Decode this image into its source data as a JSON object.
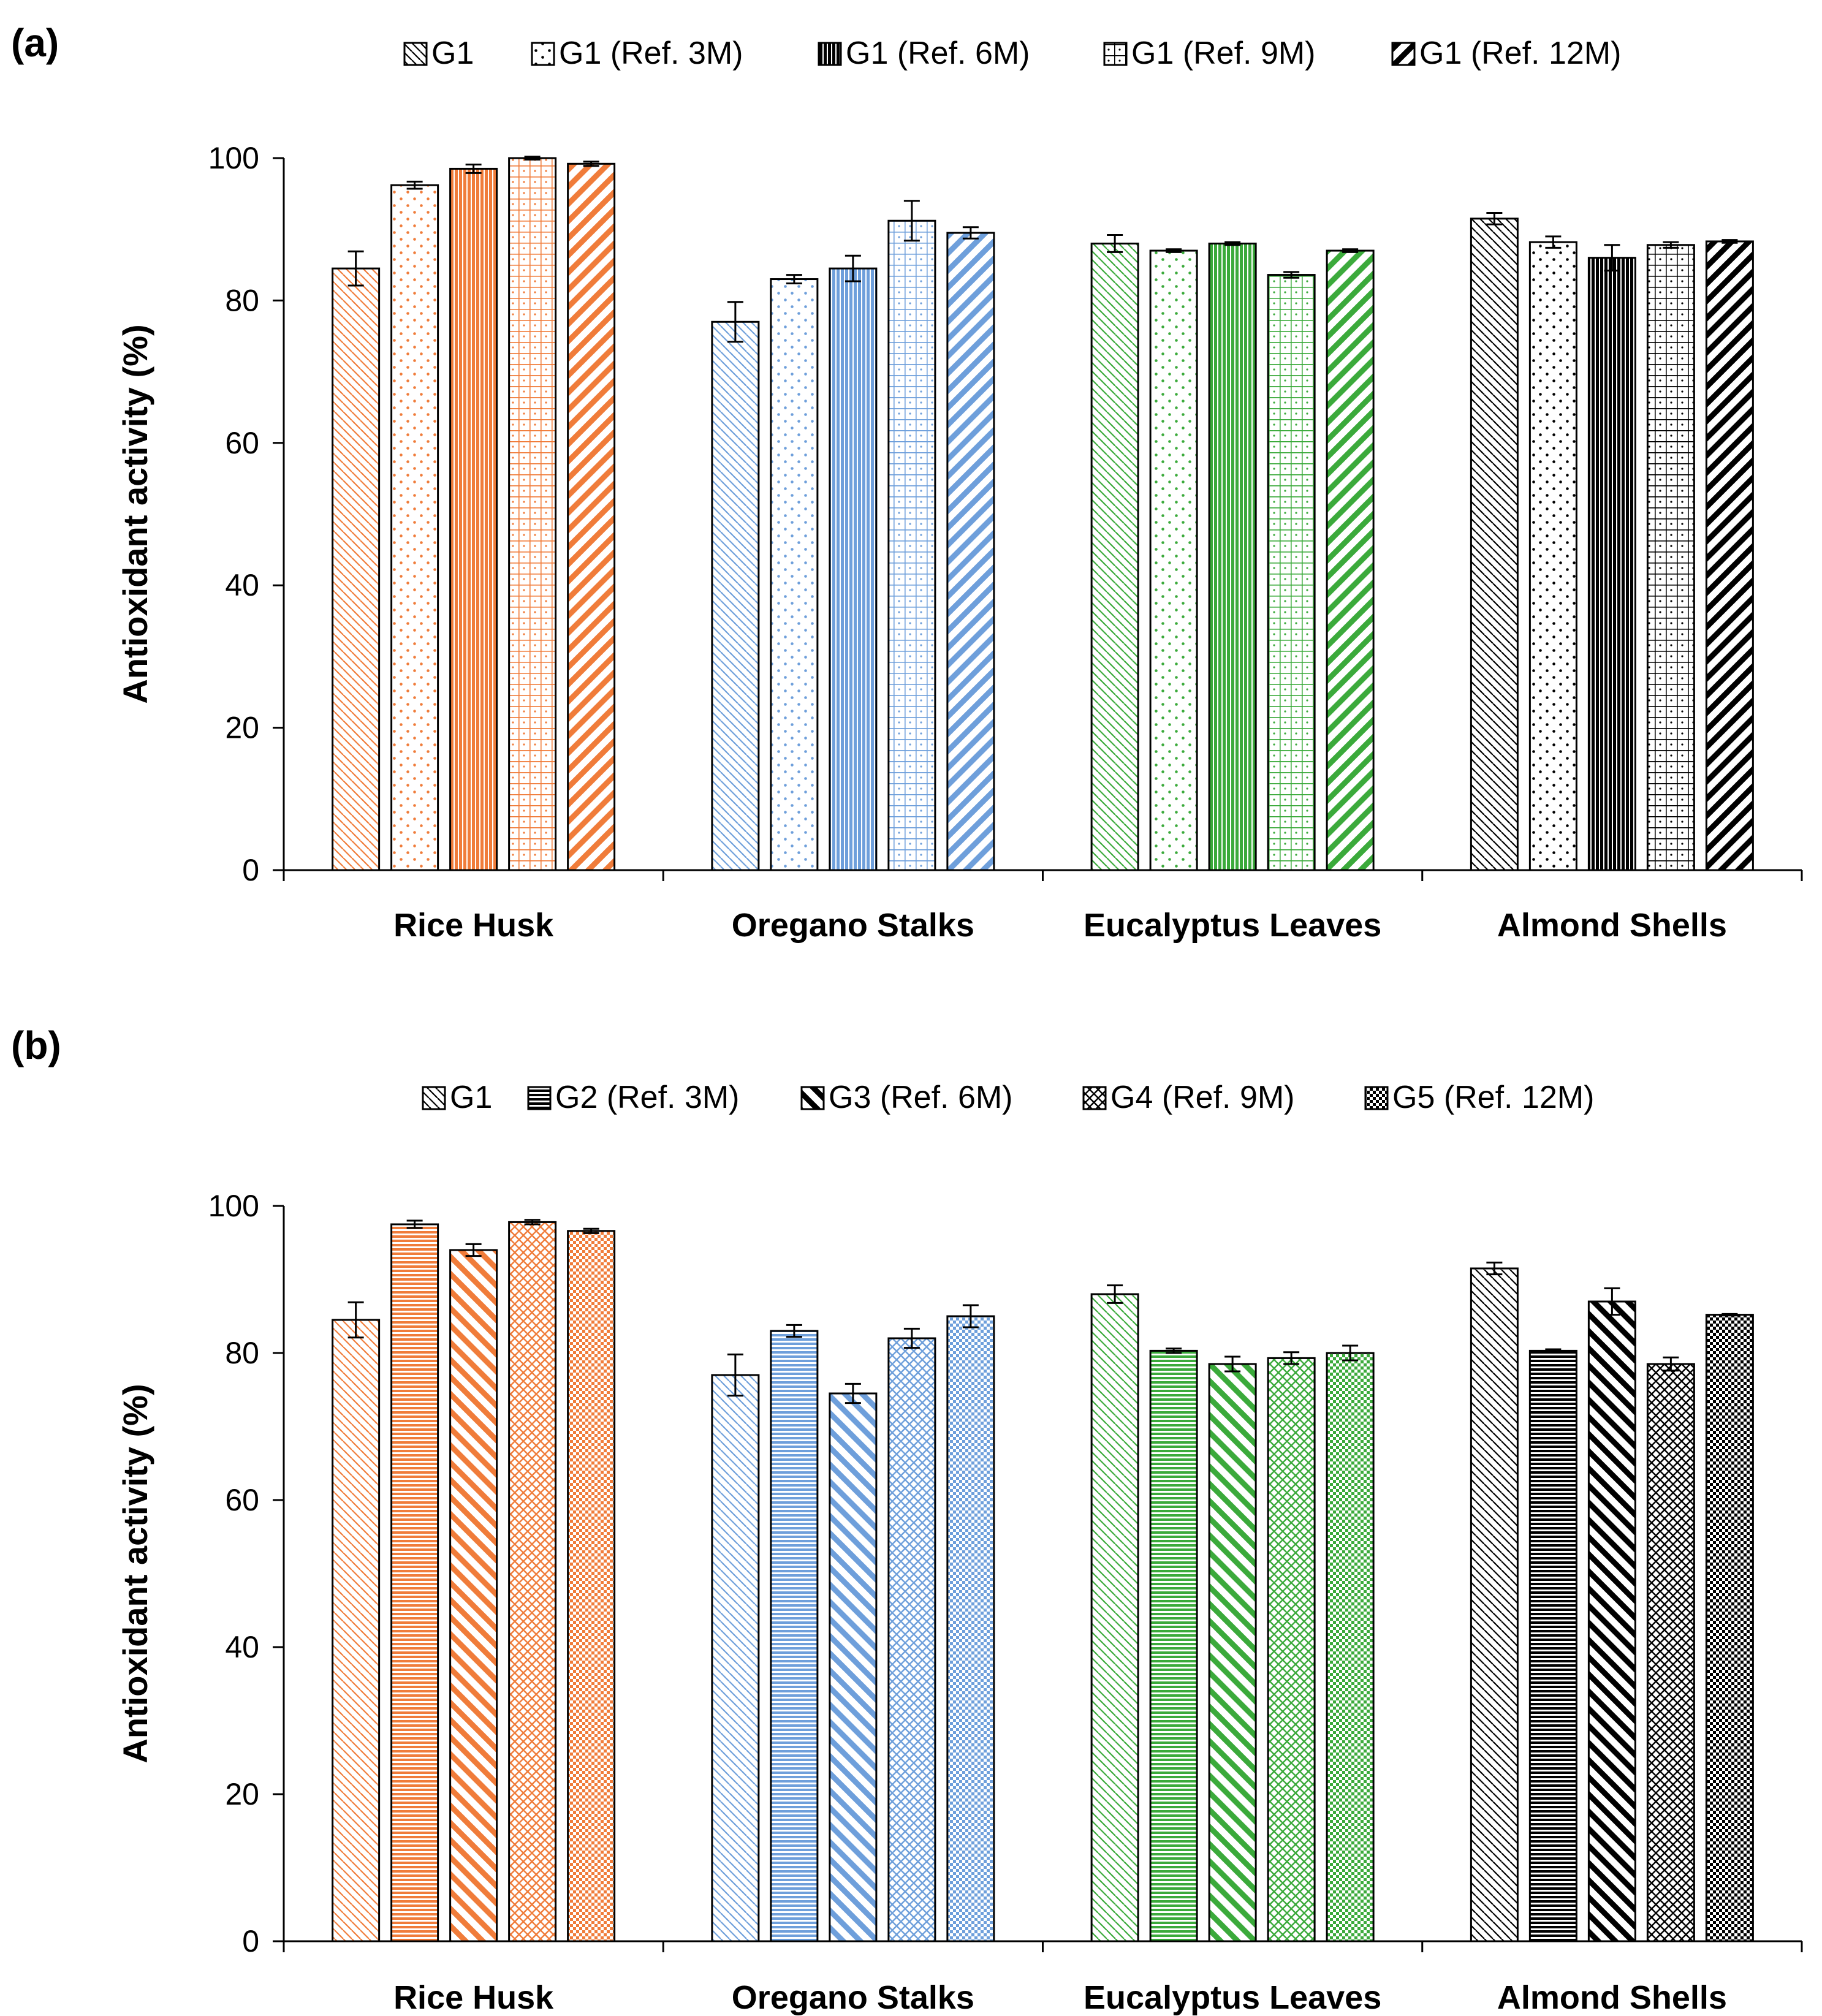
{
  "chart_data": [
    {
      "type": "bar",
      "panel_label": "(a)",
      "ylabel": "Antioxidant activity (%)",
      "xlabel": "",
      "ylim": [
        0,
        100
      ],
      "yticks": [
        "0",
        "20",
        "40",
        "60",
        "80",
        "100"
      ],
      "legend_position": "top",
      "categories": [
        "Rice Husk",
        "Oregano Stalks",
        "Eucalyptus Leaves",
        "Almond Shells"
      ],
      "category_colors": [
        "#F07C3A",
        "#6E9FDB",
        "#3BAA3B",
        "#000000"
      ],
      "series": [
        {
          "name": "G1",
          "pattern": "diag-dense",
          "values": [
            84.5,
            77,
            88,
            91.5
          ],
          "errors": [
            2.4,
            2.8,
            1.2,
            0.8
          ]
        },
        {
          "name": "G1 (Ref. 3M)",
          "pattern": "dots",
          "values": [
            96.2,
            83,
            87,
            88.2
          ],
          "errors": [
            0.5,
            0.6,
            0.2,
            0.8
          ]
        },
        {
          "name": "G1 (Ref. 6M)",
          "pattern": "vertical",
          "values": [
            98.5,
            84.5,
            88,
            86
          ],
          "errors": [
            0.6,
            1.8,
            0.2,
            1.8
          ]
        },
        {
          "name": "G1 (Ref. 9M)",
          "pattern": "grid",
          "values": [
            100,
            91.2,
            83.6,
            87.8
          ],
          "errors": [
            0.2,
            2.8,
            0.4,
            0.4
          ]
        },
        {
          "name": "G1 (Ref. 12M)",
          "pattern": "wide-diag",
          "values": [
            99.2,
            89.5,
            87,
            88.3
          ],
          "errors": [
            0.3,
            0.8,
            0.2,
            0.2
          ]
        }
      ]
    },
    {
      "type": "bar",
      "panel_label": "(b)",
      "ylabel": "Antioxidant activity (%)",
      "xlabel": "",
      "ylim": [
        0,
        100
      ],
      "yticks": [
        "0",
        "20",
        "40",
        "60",
        "80",
        "100"
      ],
      "legend_position": "top",
      "categories": [
        "Rice Husk",
        "Oregano Stalks",
        "Eucalyptus Leaves",
        "Almond Shells"
      ],
      "category_colors": [
        "#F07C3A",
        "#6E9FDB",
        "#3BAA3B",
        "#000000"
      ],
      "series": [
        {
          "name": "G1",
          "pattern": "diag-dense",
          "values": [
            84.5,
            77,
            88,
            91.5
          ],
          "errors": [
            2.4,
            2.8,
            1.2,
            0.8
          ]
        },
        {
          "name": "G2 (Ref. 3M)",
          "pattern": "horizontal",
          "values": [
            97.5,
            83,
            80.3,
            80.3
          ],
          "errors": [
            0.5,
            0.8,
            0.3,
            0.2
          ]
        },
        {
          "name": "G3 (Ref. 6M)",
          "pattern": "wide-diag-rev",
          "values": [
            94,
            74.5,
            78.5,
            87
          ],
          "errors": [
            0.8,
            1.3,
            1,
            1.8
          ]
        },
        {
          "name": "G4 (Ref. 9M)",
          "pattern": "crosshatch",
          "values": [
            97.8,
            82,
            79.3,
            78.5
          ],
          "errors": [
            0.3,
            1.3,
            0.8,
            0.9
          ]
        },
        {
          "name": "G5 (Ref. 12M)",
          "pattern": "checker",
          "values": [
            96.6,
            85,
            80,
            85.2
          ],
          "errors": [
            0.3,
            1.5,
            1,
            0.1
          ]
        }
      ]
    }
  ]
}
